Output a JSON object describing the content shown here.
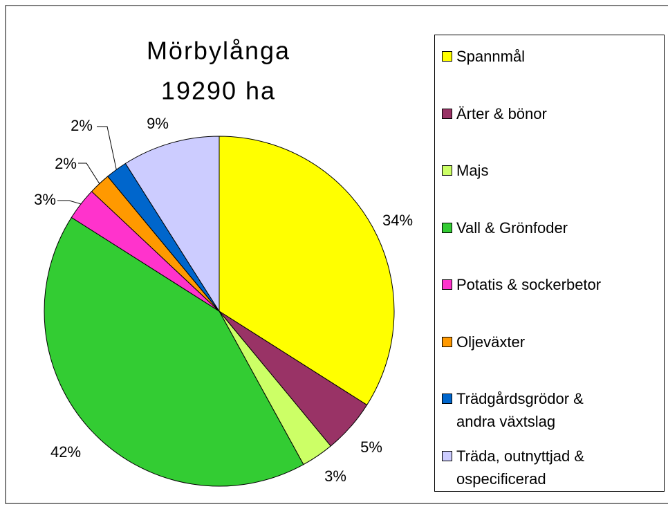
{
  "chart_data": {
    "type": "pie",
    "title": "Mörbylånga",
    "subtitle": "19290 ha",
    "categories": [
      "Spannmål",
      "Ärter & bönor",
      "Majs",
      "Vall & Grönfoder",
      "Potatis & sockerbetor",
      "Oljeväxter",
      "Trädgårdsgrödor & andra växtslag",
      "Träda, outnyttjad & ospecificerad"
    ],
    "values": [
      34,
      5,
      3,
      42,
      3,
      2,
      2,
      9
    ],
    "value_labels": [
      "34%",
      "5%",
      "3%",
      "42%",
      "3%",
      "2%",
      "2%",
      "9%"
    ],
    "colors": [
      "#ffff00",
      "#993366",
      "#ccff66",
      "#33cc33",
      "#ff33cc",
      "#ff9900",
      "#0066cc",
      "#ccccff"
    ],
    "legend": "right"
  }
}
